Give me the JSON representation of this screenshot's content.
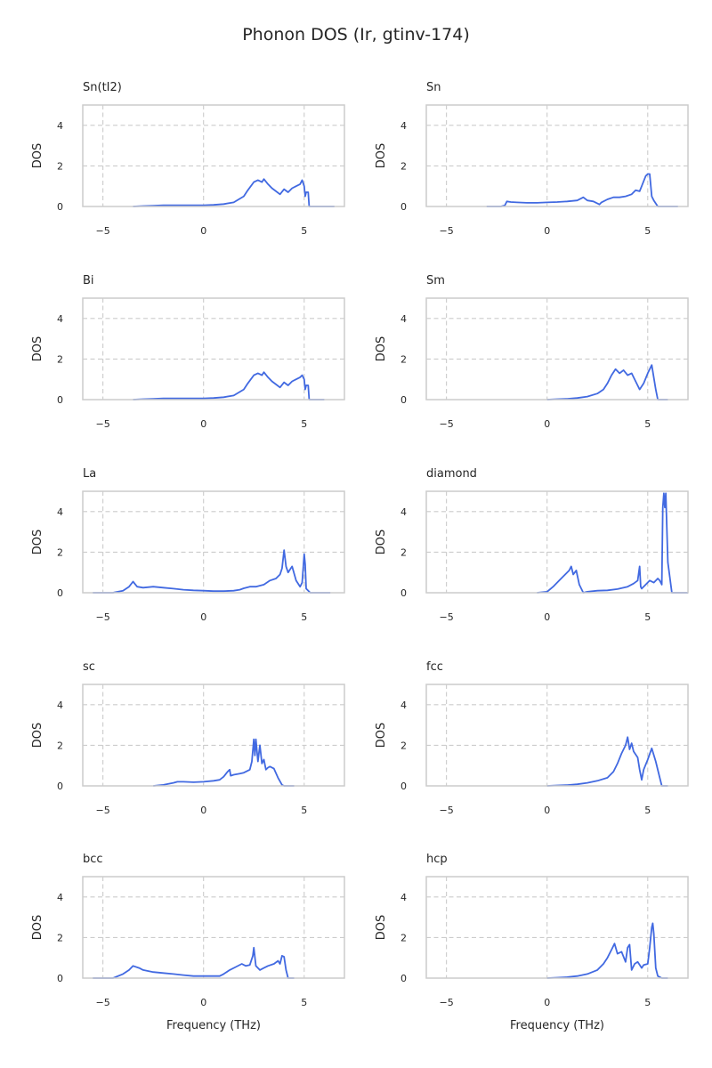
{
  "figure": {
    "title": "Phonon DOS (Ir, gtinv-174)"
  },
  "chart_data": [
    {
      "type": "line",
      "title": "Sn(tI2)",
      "xlabel": "",
      "ylabel": "DOS",
      "xlim": [
        -6,
        7
      ],
      "ylim": [
        0,
        5
      ],
      "xticks": [
        -5,
        0,
        5
      ],
      "yticks": [
        0,
        2,
        4
      ],
      "grid": true,
      "x": [
        -3.5,
        -3,
        -2.5,
        -2,
        -1.5,
        -1,
        -0.5,
        0,
        0.5,
        1,
        1.5,
        2,
        2.2,
        2.5,
        2.7,
        2.9,
        3.0,
        3.2,
        3.4,
        3.6,
        3.8,
        4.0,
        4.2,
        4.4,
        4.6,
        4.8,
        4.9,
        5.0,
        5.05,
        5.1,
        5.2,
        5.25,
        5.5,
        6.5
      ],
      "y": [
        0,
        0.02,
        0.04,
        0.06,
        0.06,
        0.06,
        0.06,
        0.06,
        0.08,
        0.12,
        0.2,
        0.5,
        0.8,
        1.2,
        1.3,
        1.2,
        1.35,
        1.1,
        0.9,
        0.75,
        0.6,
        0.85,
        0.7,
        0.9,
        1.0,
        1.1,
        1.3,
        1.0,
        0.5,
        0.7,
        0.7,
        0,
        0,
        0
      ]
    },
    {
      "type": "line",
      "title": "Sn",
      "xlabel": "",
      "ylabel": "DOS",
      "xlim": [
        -6,
        7
      ],
      "ylim": [
        0,
        5
      ],
      "xticks": [
        -5,
        0,
        5
      ],
      "yticks": [
        0,
        2,
        4
      ],
      "grid": true,
      "x": [
        -3,
        -2.3,
        -2.1,
        -2.0,
        -1.8,
        -1.5,
        -1,
        -0.5,
        0,
        0.5,
        1,
        1.5,
        1.8,
        2.0,
        2.3,
        2.6,
        2.7,
        3.0,
        3.3,
        3.6,
        3.9,
        4.2,
        4.4,
        4.6,
        4.7,
        4.9,
        5.0,
        5.1,
        5.2,
        5.3,
        5.5,
        6.5
      ],
      "y": [
        0,
        0,
        0.05,
        0.25,
        0.22,
        0.2,
        0.18,
        0.18,
        0.2,
        0.22,
        0.25,
        0.3,
        0.45,
        0.3,
        0.25,
        0.1,
        0.2,
        0.35,
        0.45,
        0.45,
        0.5,
        0.6,
        0.8,
        0.75,
        1.0,
        1.5,
        1.6,
        1.6,
        0.5,
        0.3,
        0,
        0
      ]
    },
    {
      "type": "line",
      "title": "Bi",
      "xlabel": "",
      "ylabel": "DOS",
      "xlim": [
        -6,
        7
      ],
      "ylim": [
        0,
        5
      ],
      "xticks": [
        -5,
        0,
        5
      ],
      "yticks": [
        0,
        2,
        4
      ],
      "grid": true,
      "x": [
        -3.5,
        -3,
        -2.5,
        -2,
        -1.5,
        -1,
        -0.5,
        0,
        0.5,
        1,
        1.5,
        2,
        2.2,
        2.5,
        2.7,
        2.9,
        3.0,
        3.2,
        3.4,
        3.6,
        3.8,
        4.0,
        4.2,
        4.4,
        4.6,
        4.8,
        4.9,
        5.0,
        5.05,
        5.1,
        5.2,
        5.25,
        6.0
      ],
      "y": [
        0,
        0.02,
        0.04,
        0.06,
        0.06,
        0.06,
        0.06,
        0.06,
        0.08,
        0.12,
        0.2,
        0.5,
        0.8,
        1.2,
        1.3,
        1.2,
        1.35,
        1.1,
        0.9,
        0.75,
        0.6,
        0.85,
        0.7,
        0.9,
        1.0,
        1.1,
        1.2,
        1.0,
        0.5,
        0.7,
        0.7,
        0,
        0
      ]
    },
    {
      "type": "line",
      "title": "Sm",
      "xlabel": "",
      "ylabel": "DOS",
      "xlim": [
        -6,
        7
      ],
      "ylim": [
        0,
        5
      ],
      "xticks": [
        -5,
        0,
        5
      ],
      "yticks": [
        0,
        2,
        4
      ],
      "grid": true,
      "x": [
        0,
        0.5,
        1,
        1.5,
        2,
        2.5,
        2.8,
        3.0,
        3.2,
        3.4,
        3.6,
        3.8,
        4.0,
        4.2,
        4.4,
        4.6,
        4.8,
        5.0,
        5.2,
        5.4,
        5.5,
        5.7,
        6.0
      ],
      "y": [
        0,
        0.02,
        0.04,
        0.08,
        0.15,
        0.3,
        0.5,
        0.8,
        1.2,
        1.5,
        1.3,
        1.45,
        1.2,
        1.3,
        0.9,
        0.5,
        0.8,
        1.3,
        1.7,
        0.5,
        0,
        0,
        0
      ]
    },
    {
      "type": "line",
      "title": "La",
      "xlabel": "",
      "ylabel": "DOS",
      "xlim": [
        -6,
        7
      ],
      "ylim": [
        0,
        5
      ],
      "xticks": [
        -5,
        0,
        5
      ],
      "yticks": [
        0,
        2,
        4
      ],
      "grid": true,
      "x": [
        -5.5,
        -4.5,
        -4,
        -3.7,
        -3.5,
        -3.3,
        -3,
        -2.5,
        -2,
        -1.5,
        -1,
        -0.5,
        0,
        0.5,
        1,
        1.5,
        1.8,
        2.0,
        2.3,
        2.6,
        3.0,
        3.3,
        3.6,
        3.8,
        3.9,
        4.0,
        4.1,
        4.2,
        4.4,
        4.6,
        4.8,
        4.9,
        5.0,
        5.05,
        5.1,
        5.3,
        6.3
      ],
      "y": [
        0,
        0,
        0.1,
        0.3,
        0.55,
        0.3,
        0.25,
        0.3,
        0.25,
        0.2,
        0.15,
        0.12,
        0.1,
        0.08,
        0.08,
        0.1,
        0.15,
        0.22,
        0.3,
        0.3,
        0.4,
        0.6,
        0.7,
        0.9,
        1.2,
        2.1,
        1.3,
        1.0,
        1.3,
        0.6,
        0.3,
        0.5,
        1.9,
        1.4,
        0.2,
        0,
        0
      ]
    },
    {
      "type": "line",
      "title": "diamond",
      "xlabel": "",
      "ylabel": "DOS",
      "xlim": [
        -6,
        7
      ],
      "ylim": [
        0,
        5
      ],
      "xticks": [
        -5,
        0,
        5
      ],
      "yticks": [
        0,
        2,
        4
      ],
      "grid": true,
      "x": [
        -0.5,
        0,
        0.3,
        0.6,
        0.9,
        1.1,
        1.2,
        1.3,
        1.45,
        1.6,
        1.8,
        2.0,
        2.5,
        3,
        3.5,
        4,
        4.3,
        4.5,
        4.6,
        4.65,
        4.7,
        4.9,
        5.1,
        5.3,
        5.5,
        5.6,
        5.7,
        5.75,
        5.8,
        5.85,
        5.9,
        6.0,
        6.2,
        7
      ],
      "y": [
        0,
        0.05,
        0.3,
        0.6,
        0.9,
        1.1,
        1.3,
        0.9,
        1.1,
        0.4,
        0,
        0.05,
        0.1,
        0.12,
        0.18,
        0.3,
        0.45,
        0.6,
        1.3,
        0.3,
        0.2,
        0.4,
        0.6,
        0.5,
        0.7,
        0.6,
        0.4,
        4.2,
        4.9,
        4.2,
        4.9,
        1.5,
        0,
        0
      ]
    },
    {
      "type": "line",
      "title": "sc",
      "xlabel": "",
      "ylabel": "DOS",
      "xlim": [
        -6,
        7
      ],
      "ylim": [
        0,
        5
      ],
      "xticks": [
        -5,
        0,
        5
      ],
      "yticks": [
        0,
        2,
        4
      ],
      "grid": true,
      "x": [
        -2.5,
        -2,
        -1.5,
        -1.3,
        -1,
        -0.5,
        0,
        0.5,
        0.8,
        1.0,
        1.2,
        1.3,
        1.35,
        1.5,
        1.8,
        2.0,
        2.3,
        2.4,
        2.5,
        2.55,
        2.6,
        2.7,
        2.8,
        2.9,
        3.0,
        3.1,
        3.2,
        3.3,
        3.5,
        3.7,
        3.9,
        4.0,
        4.5
      ],
      "y": [
        0,
        0.05,
        0.15,
        0.2,
        0.2,
        0.18,
        0.2,
        0.25,
        0.3,
        0.45,
        0.7,
        0.8,
        0.5,
        0.55,
        0.6,
        0.65,
        0.8,
        1.2,
        2.3,
        1.5,
        2.3,
        1.2,
        2.0,
        1.1,
        1.3,
        0.8,
        0.9,
        0.95,
        0.85,
        0.4,
        0.05,
        0,
        0
      ]
    },
    {
      "type": "line",
      "title": "fcc",
      "xlabel": "",
      "ylabel": "DOS",
      "xlim": [
        -6,
        7
      ],
      "ylim": [
        0,
        5
      ],
      "xticks": [
        -5,
        0,
        5
      ],
      "yticks": [
        0,
        2,
        4
      ],
      "grid": true,
      "x": [
        0,
        0.5,
        1,
        1.5,
        2,
        2.5,
        3.0,
        3.3,
        3.5,
        3.7,
        3.9,
        4.0,
        4.1,
        4.2,
        4.3,
        4.5,
        4.6,
        4.7,
        4.8,
        5.0,
        5.2,
        5.4,
        5.6,
        5.7,
        6.0
      ],
      "y": [
        0,
        0.02,
        0.04,
        0.08,
        0.15,
        0.25,
        0.4,
        0.7,
        1.1,
        1.6,
        2.0,
        2.4,
        1.8,
        2.1,
        1.7,
        1.4,
        0.8,
        0.3,
        0.8,
        1.3,
        1.85,
        1.2,
        0.4,
        0,
        0
      ]
    },
    {
      "type": "line",
      "title": "bcc",
      "xlabel": "Frequency (THz)",
      "ylabel": "DOS",
      "xlim": [
        -6,
        7
      ],
      "ylim": [
        0,
        5
      ],
      "xticks": [
        -5,
        0,
        5
      ],
      "yticks": [
        0,
        2,
        4
      ],
      "grid": true,
      "x": [
        -5.5,
        -4.5,
        -4,
        -3.7,
        -3.5,
        -3.2,
        -3,
        -2.5,
        -2,
        -1.5,
        -1,
        -0.5,
        0,
        0.5,
        0.8,
        1.0,
        1.3,
        1.6,
        1.9,
        2.1,
        2.3,
        2.45,
        2.5,
        2.6,
        2.8,
        3.0,
        3.2,
        3.5,
        3.7,
        3.8,
        3.9,
        4.0,
        4.1,
        4.2,
        4.5
      ],
      "y": [
        0,
        0,
        0.2,
        0.4,
        0.6,
        0.5,
        0.4,
        0.3,
        0.25,
        0.2,
        0.15,
        0.1,
        0.1,
        0.1,
        0.1,
        0.2,
        0.4,
        0.55,
        0.7,
        0.6,
        0.65,
        1.1,
        1.5,
        0.6,
        0.4,
        0.5,
        0.6,
        0.7,
        0.85,
        0.7,
        1.1,
        1.05,
        0.4,
        0,
        0
      ]
    },
    {
      "type": "line",
      "title": "hcp",
      "xlabel": "Frequency (THz)",
      "ylabel": "DOS",
      "xlim": [
        -6,
        7
      ],
      "ylim": [
        0,
        5
      ],
      "xticks": [
        -5,
        0,
        5
      ],
      "yticks": [
        0,
        2,
        4
      ],
      "grid": true,
      "x": [
        0,
        0.5,
        1,
        1.5,
        2,
        2.5,
        2.8,
        3.0,
        3.2,
        3.35,
        3.5,
        3.7,
        3.9,
        4.0,
        4.1,
        4.2,
        4.35,
        4.5,
        4.7,
        4.8,
        5.0,
        5.1,
        5.2,
        5.25,
        5.3,
        5.4,
        5.5,
        5.7,
        6.0
      ],
      "y": [
        0,
        0.02,
        0.05,
        0.1,
        0.2,
        0.4,
        0.7,
        1.0,
        1.4,
        1.7,
        1.2,
        1.3,
        0.8,
        1.5,
        1.65,
        0.4,
        0.7,
        0.8,
        0.5,
        0.65,
        0.7,
        1.5,
        2.5,
        2.7,
        2.2,
        0.5,
        0.1,
        0,
        0
      ]
    }
  ]
}
